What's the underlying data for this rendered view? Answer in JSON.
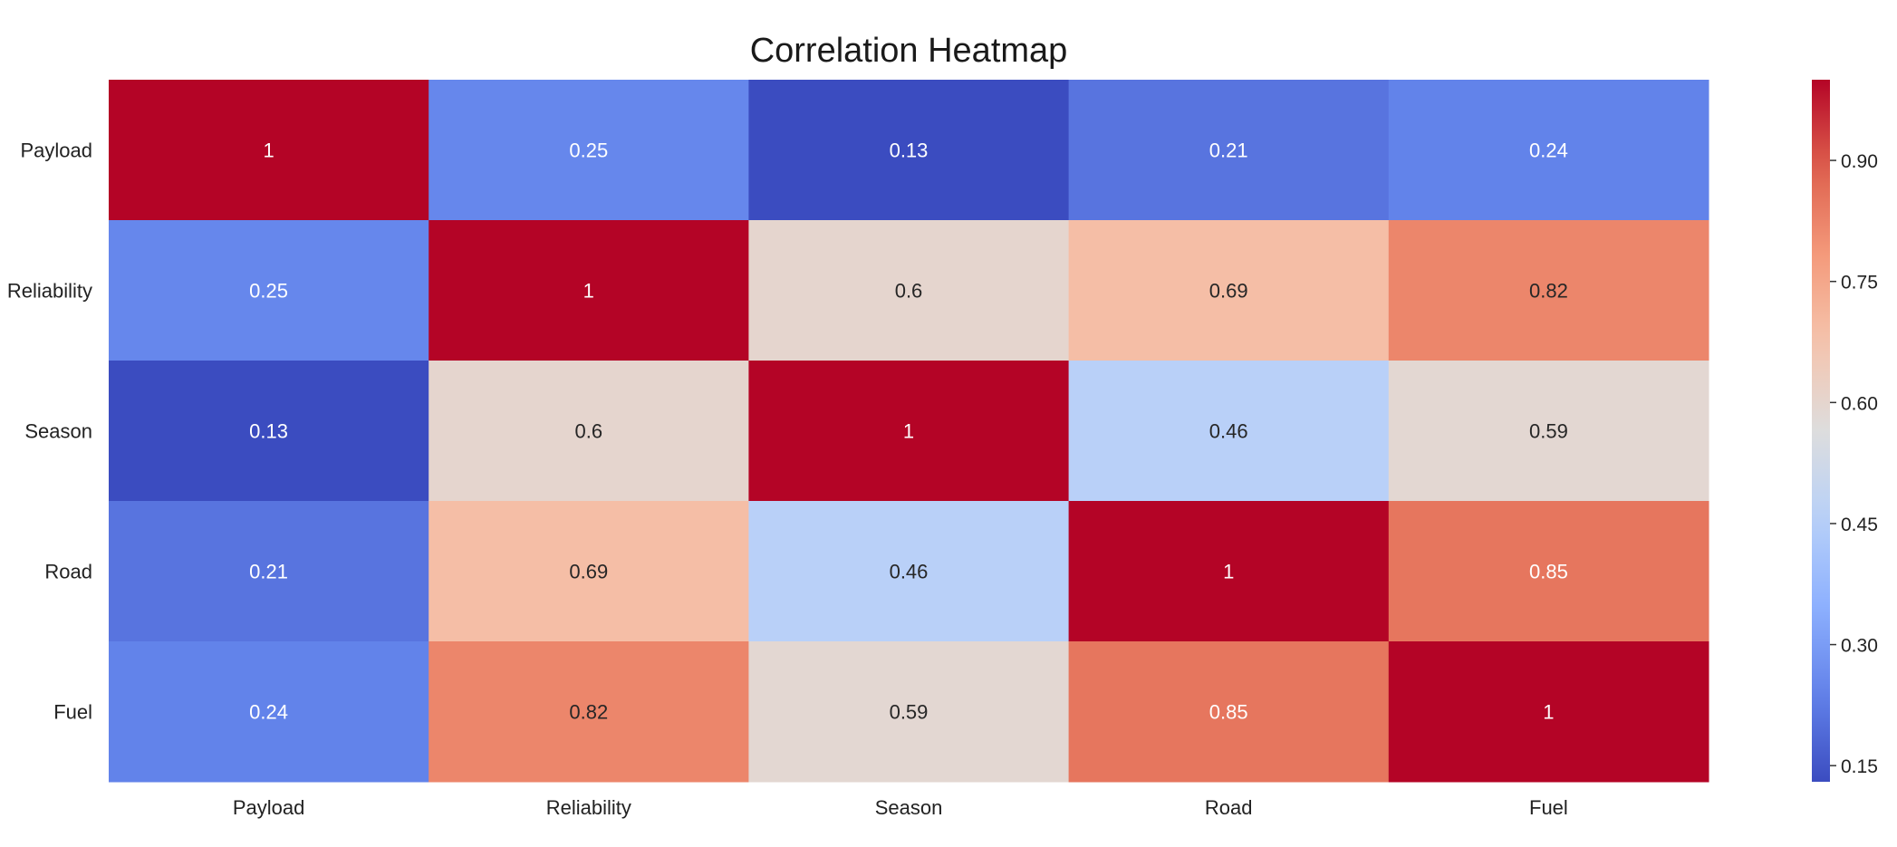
{
  "chart_data": {
    "type": "heatmap",
    "title": "Correlation Heatmap",
    "xlabel": "",
    "ylabel": "",
    "x_labels": [
      "Payload",
      "Reliability",
      "Season",
      "Road",
      "Fuel"
    ],
    "y_labels": [
      "Payload",
      "Reliability",
      "Season",
      "Road",
      "Fuel"
    ],
    "values": [
      [
        1,
        0.25,
        0.13,
        0.21,
        0.24
      ],
      [
        0.25,
        1,
        0.6,
        0.69,
        0.82
      ],
      [
        0.13,
        0.6,
        1,
        0.46,
        0.59
      ],
      [
        0.21,
        0.69,
        0.46,
        1,
        0.85
      ],
      [
        0.24,
        0.82,
        0.59,
        0.85,
        1
      ]
    ],
    "annotations": [
      [
        "1",
        "0.25",
        "0.13",
        "0.21",
        "0.24"
      ],
      [
        "0.25",
        "1",
        "0.6",
        "0.69",
        "0.82"
      ],
      [
        "0.13",
        "0.6",
        "1",
        "0.46",
        "0.59"
      ],
      [
        "0.21",
        "0.69",
        "0.46",
        "1",
        "0.85"
      ],
      [
        "0.24",
        "0.82",
        "0.59",
        "0.85",
        "1"
      ]
    ],
    "colormap": "coolwarm",
    "vmin": 0.13,
    "vmax": 1,
    "colorbar": {
      "ticks": [
        0.15,
        0.3,
        0.45,
        0.6,
        0.75,
        0.9
      ],
      "tick_labels": [
        "0.15",
        "0.30",
        "0.45",
        "0.60",
        "0.75",
        "0.90"
      ],
      "placement": "right"
    },
    "grid": false,
    "legend": "none"
  },
  "colors": {
    "low": "#3b4cc0",
    "mid": "#dddddd",
    "high": "#b40426",
    "background": "#ffffff"
  }
}
